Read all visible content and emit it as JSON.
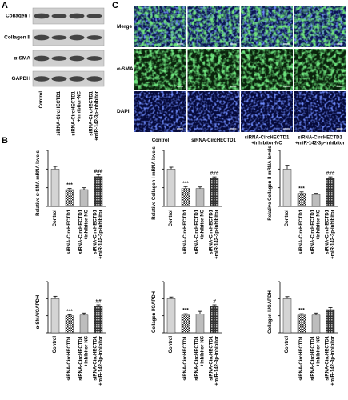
{
  "panel_letters": [
    "A",
    "B",
    "C"
  ],
  "panel_a": {
    "proteins": [
      "Collagen I",
      "Collagen II",
      "α-SMA",
      "GAPDH"
    ],
    "categories": [
      "Control",
      "siRNA-CircHECTD1",
      "siRNA-CircHECTD1\n+inhibitor-NC",
      "siRNA-CircHECTD1\n+miR-142-3p-inhibitor"
    ]
  },
  "panel_c": {
    "rows": [
      "Merge",
      "α-SMA",
      "DAPI"
    ],
    "columns": [
      "Control",
      "siRNA-CircHECTD1",
      "siRNA-CircHECTD1\n+inhibitor-NC",
      "siRNA-CircHECTD1\n+miR-142-3p-inhibitor"
    ]
  },
  "chart_data": [
    {
      "type": "bar",
      "y_label": "Relative α-SMA mRNA levels",
      "categories": [
        "Control",
        "siRNA-CircHECTD1",
        "siRNA-CircHECTD1\n+inhibitor-NC",
        "siRNA-CircHECTD1\n+miR-142-3p-inhibitor"
      ],
      "values": [
        1.0,
        0.45,
        0.45,
        0.8
      ],
      "errors": [
        0.07,
        0.03,
        0.05,
        0.05
      ],
      "significance": [
        null,
        "***",
        null,
        "###"
      ],
      "fills": [
        "#d4d4d4",
        "checker-light",
        "#bdbdbd",
        "checker-dark"
      ],
      "ylim": [
        0,
        1.5
      ],
      "yticks": [
        0,
        0.5,
        1.0,
        1.5
      ]
    },
    {
      "type": "bar",
      "y_label": "Relative Collagen I mRNA levels",
      "categories": [
        "Control",
        "siRNA-CircHECTD1",
        "siRNA-CircHECTD1\n+inhibitor-NC",
        "siRNA-CircHECTD1\n+miR-142-3p-inhibitor"
      ],
      "values": [
        1.0,
        0.48,
        0.48,
        0.75
      ],
      "errors": [
        0.05,
        0.05,
        0.04,
        0.04
      ],
      "significance": [
        null,
        "***",
        null,
        "###"
      ],
      "fills": [
        "#d4d4d4",
        "checker-light",
        "#bdbdbd",
        "checker-dark"
      ],
      "ylim": [
        0,
        1.5
      ],
      "yticks": [
        0,
        0.5,
        1.0,
        1.5
      ]
    },
    {
      "type": "bar",
      "y_label": "Relative Collagen II mRNA levels",
      "categories": [
        "Control",
        "siRNA-CircHECTD1",
        "siRNA-CircHECTD1\n+inhibitor-NC",
        "siRNA-CircHECTD1\n+miR-142-3p-inhibitor"
      ],
      "values": [
        1.0,
        0.35,
        0.32,
        0.75
      ],
      "errors": [
        0.1,
        0.04,
        0.03,
        0.04
      ],
      "significance": [
        null,
        "***",
        null,
        "###"
      ],
      "fills": [
        "#d4d4d4",
        "checker-light",
        "#bdbdbd",
        "checker-dark"
      ],
      "ylim": [
        0,
        1.5
      ],
      "yticks": [
        0,
        0.5,
        1.0,
        1.5
      ]
    },
    {
      "type": "bar",
      "y_label": "α-SMA/GAPDH",
      "categories": [
        "Control",
        "siRNA-CircHECTD1",
        "siRNA-CircHECTD1\n+inhibitor-NC",
        "siRNA-CircHECTD1\n+miR-142-3p-inhibitor"
      ],
      "values": [
        1.0,
        0.5,
        0.52,
        0.78
      ],
      "errors": [
        0.07,
        0.03,
        0.06,
        0.04
      ],
      "significance": [
        null,
        "***",
        null,
        "##"
      ],
      "fills": [
        "#d4d4d4",
        "checker-light",
        "#bdbdbd",
        "checker-dark"
      ],
      "ylim": [
        0,
        1.5
      ],
      "yticks": [
        0,
        0.5,
        1.0,
        1.5
      ]
    },
    {
      "type": "bar",
      "y_label": "Collagen I/GAPDH",
      "categories": [
        "Control",
        "siRNA-CircHECTD1",
        "siRNA-CircHECTD1\n+inhibitor-NC",
        "siRNA-CircHECTD1\n+miR-142-3p-inhibitor"
      ],
      "values": [
        1.0,
        0.52,
        0.55,
        0.78
      ],
      "errors": [
        0.05,
        0.04,
        0.08,
        0.04
      ],
      "significance": [
        null,
        "***",
        null,
        "#"
      ],
      "fills": [
        "#d4d4d4",
        "checker-light",
        "#bdbdbd",
        "checker-dark"
      ],
      "ylim": [
        0,
        1.5
      ],
      "yticks": [
        0,
        0.5,
        1.0,
        1.5
      ]
    },
    {
      "type": "bar",
      "y_label": "Collagen II/GAPDH",
      "categories": [
        "Control",
        "siRNA-CircHECTD1",
        "siRNA-CircHECTD1\n+inhibitor-NC",
        "siRNA-CircHECTD1\n+miR-142-3p-inhibitor"
      ],
      "values": [
        1.0,
        0.52,
        0.52,
        0.68
      ],
      "errors": [
        0.06,
        0.04,
        0.06,
        0.06
      ],
      "significance": [
        null,
        "***",
        null,
        null
      ],
      "fills": [
        "#d4d4d4",
        "checker-light",
        "#bdbdbd",
        "checker-dark"
      ],
      "ylim": [
        0,
        1.5
      ],
      "yticks": [
        0,
        0.5,
        1.0,
        1.5
      ]
    }
  ]
}
